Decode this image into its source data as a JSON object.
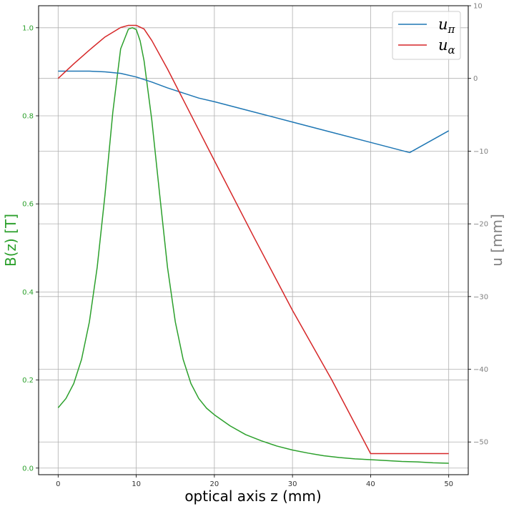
{
  "chart_data": {
    "type": "line",
    "xlabel": "optical axis z (mm)",
    "ylabel_left": "B(z) [T]",
    "ylabel_right": "u [mm]",
    "xlim": [
      -2.5,
      52.5
    ],
    "ylim_left": [
      -0.015,
      1.05
    ],
    "ylim_right": [
      -54.5,
      10
    ],
    "x_ticks": [
      0,
      10,
      20,
      30,
      40,
      50
    ],
    "y_ticks_left": [
      0.0,
      0.2,
      0.4,
      0.6,
      0.8,
      1.0
    ],
    "y_ticks_right": [
      10,
      0,
      -10,
      -20,
      -30,
      -40,
      -50
    ],
    "grid": true,
    "legend_position": "upper right",
    "legend": [
      {
        "base": "u",
        "sub": "π",
        "color": "#1f77b4"
      },
      {
        "base": "u",
        "sub": "α",
        "color": "#d62728"
      }
    ],
    "series": [
      {
        "axis": "left",
        "color": "#2ca02c",
        "x": [
          0,
          1,
          2,
          3,
          4,
          5,
          6,
          7,
          8,
          9,
          9.5,
          10,
          10.5,
          11,
          12,
          13,
          14,
          15,
          16,
          17,
          18,
          19,
          20,
          22,
          24,
          26,
          28,
          30,
          32,
          34,
          36,
          38,
          40,
          42,
          44,
          46,
          48,
          50
        ],
        "y": [
          0.137,
          0.158,
          0.192,
          0.247,
          0.332,
          0.456,
          0.621,
          0.808,
          0.952,
          0.997,
          1.0,
          0.996,
          0.97,
          0.925,
          0.789,
          0.621,
          0.456,
          0.332,
          0.247,
          0.192,
          0.158,
          0.136,
          0.121,
          0.096,
          0.076,
          0.062,
          0.05,
          0.041,
          0.034,
          0.028,
          0.024,
          0.021,
          0.019,
          0.017,
          0.015,
          0.014,
          0.012,
          0.011
        ]
      },
      {
        "name": "u_π",
        "axis": "right",
        "color": "#1f77b4",
        "x": [
          0,
          2,
          4,
          6,
          8,
          10,
          12,
          14,
          16,
          18,
          20,
          25,
          30,
          35,
          40,
          45,
          50
        ],
        "y": [
          1.0,
          1.0,
          1.0,
          0.9,
          0.7,
          0.2,
          -0.5,
          -1.3,
          -2.0,
          -2.7,
          -3.2,
          -4.6,
          -6.0,
          -7.4,
          -8.8,
          -10.2,
          -7.2
        ]
      },
      {
        "name": "u_α",
        "axis": "right",
        "color": "#d62728",
        "x": [
          0,
          2,
          4,
          6,
          8,
          9,
          10,
          11,
          12,
          14,
          16,
          18,
          20,
          25,
          30,
          35,
          40,
          45,
          50
        ],
        "y": [
          0.0,
          2.0,
          3.9,
          5.7,
          7.0,
          7.3,
          7.3,
          6.8,
          5.2,
          1.3,
          -2.9,
          -7.1,
          -11.3,
          -21.7,
          -31.9,
          -41.4,
          -51.6,
          -51.6,
          -51.6
        ]
      }
    ]
  }
}
